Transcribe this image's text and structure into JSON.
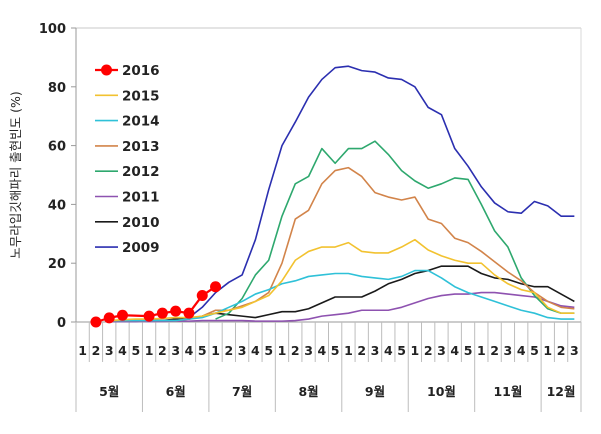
{
  "chart_data": {
    "type": "line",
    "title": "",
    "ylabel": "노무라입깃해파리 출현빈도 (%)",
    "xlabel": "",
    "ylim": [
      0,
      100
    ],
    "yticks": [
      "0",
      "20",
      "40",
      "60",
      "80",
      "100"
    ],
    "grid": false,
    "legend_position": "top-left",
    "x": [
      "1",
      "2",
      "3",
      "4",
      "5",
      "1",
      "2",
      "3",
      "4",
      "5",
      "1",
      "2",
      "3",
      "4",
      "5",
      "1",
      "2",
      "3",
      "4",
      "5",
      "1",
      "2",
      "3",
      "4",
      "5",
      "1",
      "2",
      "3",
      "4",
      "5",
      "1",
      "2",
      "3",
      "4",
      "5",
      "1",
      "2",
      "3"
    ],
    "months": [
      {
        "label": "5월",
        "weeks": 5
      },
      {
        "label": "6월",
        "weeks": 5
      },
      {
        "label": "7월",
        "weeks": 5
      },
      {
        "label": "8월",
        "weeks": 5
      },
      {
        "label": "9월",
        "weeks": 5
      },
      {
        "label": "10월",
        "weeks": 5
      },
      {
        "label": "11월",
        "weeks": 5
      },
      {
        "label": "12월",
        "weeks": 3
      }
    ],
    "series": [
      {
        "name": "2016",
        "color": "#ff0000",
        "markers": true,
        "values": [
          null,
          0,
          1.4,
          2.3,
          null,
          2.0,
          3.0,
          3.7,
          3.0,
          9.0,
          12.0,
          null,
          null,
          null,
          null,
          null,
          null,
          null,
          null,
          null,
          null,
          null,
          null,
          null,
          null,
          null,
          null,
          null,
          null,
          null,
          null,
          null,
          null,
          null,
          null,
          null,
          null,
          null
        ]
      },
      {
        "name": "2015",
        "color": "#f2c230",
        "markers": false,
        "values": [
          null,
          null,
          0.5,
          0.8,
          1.0,
          1.0,
          1.2,
          1.5,
          1.5,
          2.0,
          3.0,
          4.0,
          5.0,
          7.0,
          9.0,
          14.0,
          21.0,
          24.0,
          25.5,
          25.5,
          27.0,
          24.0,
          23.5,
          23.5,
          25.5,
          28.0,
          24.5,
          22.5,
          21.0,
          20.0,
          20.0,
          16.0,
          13.0,
          11.0,
          10.0,
          5.0,
          3.0,
          3.0
        ]
      },
      {
        "name": "2014",
        "color": "#2fc1d8",
        "markers": false,
        "values": [
          null,
          null,
          0.5,
          0.5,
          0.5,
          0.5,
          0.5,
          0.5,
          1.0,
          1.5,
          3.0,
          5.0,
          7.0,
          9.5,
          11.0,
          13.0,
          14.0,
          15.5,
          16.0,
          16.5,
          16.5,
          15.5,
          15.0,
          14.5,
          15.5,
          17.5,
          17.5,
          15.0,
          12.0,
          10.0,
          8.5,
          7.0,
          5.5,
          4.0,
          3.0,
          1.5,
          1.0,
          1.0
        ]
      },
      {
        "name": "2013",
        "color": "#d2844a",
        "markers": false,
        "values": [
          null,
          null,
          0.3,
          0.5,
          0.5,
          0.5,
          0.5,
          0.5,
          1.0,
          2.0,
          4.0,
          4.0,
          5.5,
          7.0,
          10.0,
          20.0,
          35.0,
          38.0,
          47.0,
          51.5,
          52.5,
          49.5,
          44.0,
          42.5,
          41.5,
          42.5,
          35.0,
          33.5,
          28.5,
          27.0,
          24.0,
          20.5,
          17.0,
          14.0,
          10.0,
          7.0,
          5.0,
          4.5
        ]
      },
      {
        "name": "2012",
        "color": "#2ea86e",
        "markers": false,
        "values": [
          null,
          null,
          null,
          null,
          null,
          null,
          null,
          null,
          null,
          null,
          1.0,
          3.0,
          8.0,
          16.0,
          21.0,
          36.0,
          47.0,
          49.5,
          59.0,
          54.0,
          59.0,
          59.0,
          61.5,
          57.0,
          51.5,
          48.0,
          45.5,
          47.0,
          49.0,
          48.5,
          40.0,
          31.0,
          25.5,
          15.0,
          9.0,
          4.5,
          3.0,
          3.0
        ]
      },
      {
        "name": "2011",
        "color": "#8e52b0",
        "markers": false,
        "values": [
          null,
          null,
          0.2,
          0.2,
          0.2,
          0.2,
          0.2,
          0.3,
          0.3,
          0.5,
          0.5,
          0.5,
          0.5,
          0.3,
          0.3,
          0.3,
          0.5,
          1.0,
          2.0,
          2.5,
          3.0,
          4.0,
          4.0,
          4.0,
          5.0,
          6.5,
          8.0,
          9.0,
          9.5,
          9.5,
          10.0,
          10.0,
          9.5,
          9.0,
          8.5,
          7.0,
          5.5,
          5.0
        ]
      },
      {
        "name": "2010",
        "color": "#1a1a1a",
        "markers": false,
        "values": [
          null,
          null,
          0.5,
          0.5,
          0.5,
          0.5,
          0.5,
          1.0,
          1.0,
          2.0,
          3.0,
          2.5,
          2.0,
          1.5,
          2.5,
          3.5,
          3.5,
          4.5,
          6.5,
          8.5,
          8.5,
          8.5,
          10.5,
          13.0,
          14.5,
          16.5,
          17.5,
          19.0,
          19.0,
          19.0,
          16.5,
          15.0,
          14.5,
          13.0,
          12.0,
          12.0,
          9.5,
          7.0
        ]
      },
      {
        "name": "2009",
        "color": "#2b2fb0",
        "markers": false,
        "values": [
          null,
          null,
          0.2,
          0.2,
          0.2,
          0.5,
          0.5,
          0.5,
          1.5,
          5.0,
          10.0,
          13.5,
          16.0,
          28.0,
          45.0,
          60.0,
          68.0,
          76.5,
          82.5,
          86.5,
          87.0,
          85.5,
          85.0,
          83.0,
          82.5,
          80.0,
          73.0,
          70.5,
          59.0,
          53.0,
          46.0,
          40.5,
          37.5,
          37.0,
          41.0,
          39.5,
          36.0,
          36.0
        ]
      }
    ]
  }
}
